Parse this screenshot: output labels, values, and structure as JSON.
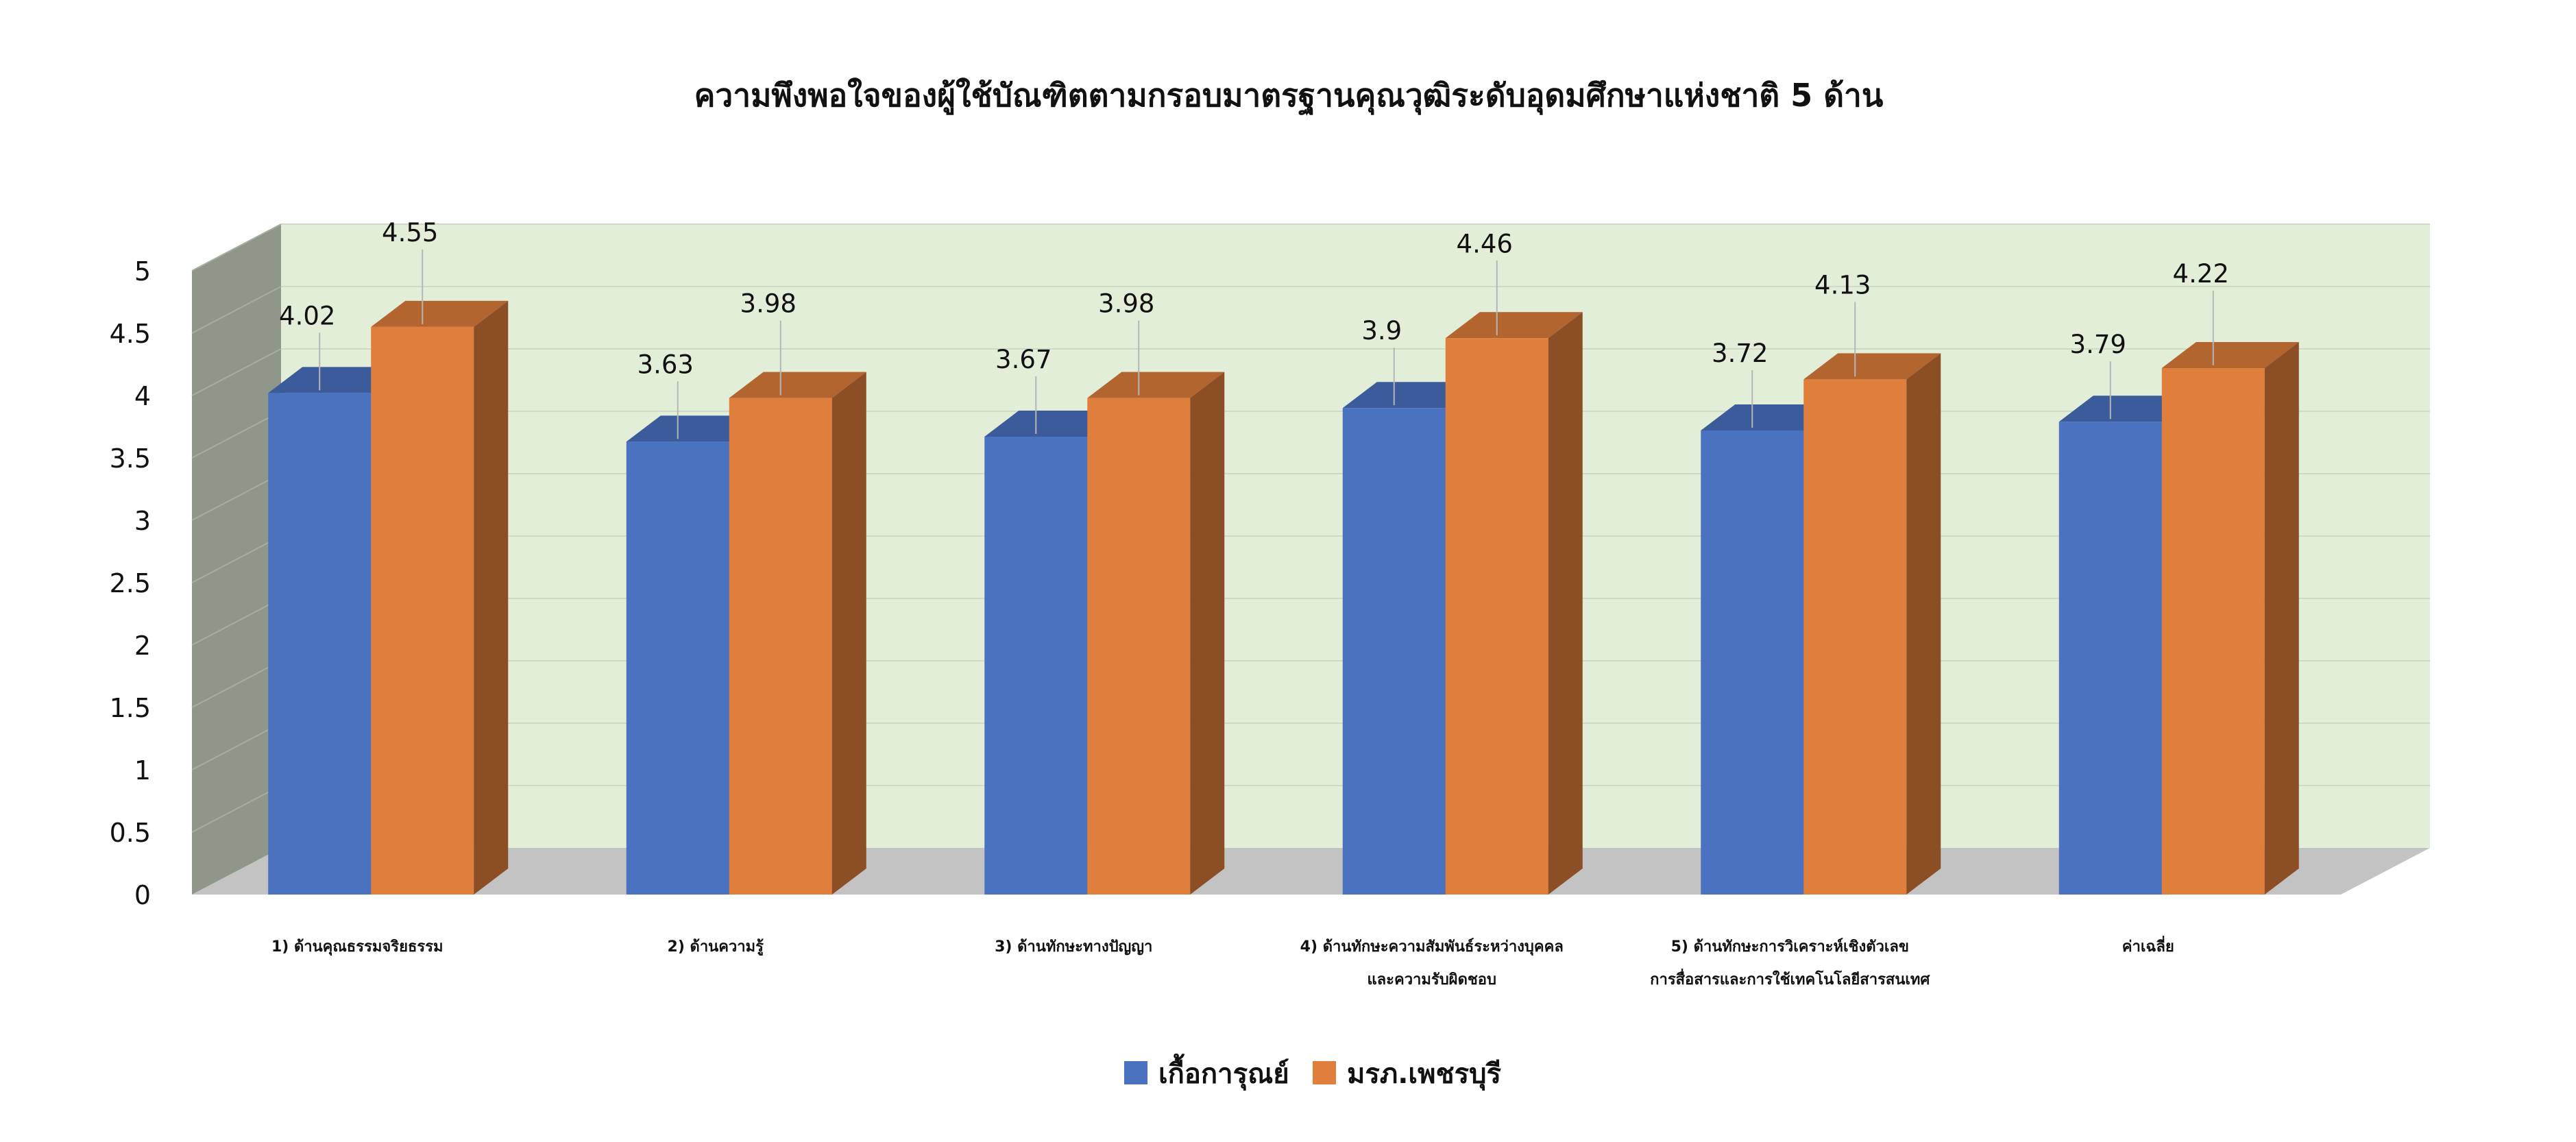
{
  "chart_data": {
    "type": "bar",
    "title": "ความพึงพอใจของผู้ใช้บัณฑิตตามกรอบมาตรฐานคุณวุฒิระดับอุดมศึกษาแห่งชาติ 5 ด้าน",
    "categories": [
      [
        "1) ด้านคุณธรรมจริยธรรม"
      ],
      [
        "2) ด้านความรู้"
      ],
      [
        "3) ด้านทักษะทางปัญญา"
      ],
      [
        "4) ด้านทักษะความสัมพันธ์ระหว่างบุคคล",
        "และความรับผิดชอบ"
      ],
      [
        "5) ด้านทักษะการวิเคราะห์เชิงตัวเลข",
        "การสื่อสารและการใช้เทคโนโลยีสารสนเทศ"
      ],
      [
        "ค่าเฉลี่ย"
      ]
    ],
    "series": [
      {
        "name": "เกื้อการุณย์",
        "values": [
          4.02,
          3.63,
          3.67,
          3.9,
          3.72,
          3.79
        ],
        "color": "#4a72c0"
      },
      {
        "name": "มรภ.เพชรบุรี",
        "values": [
          4.55,
          3.98,
          3.98,
          4.46,
          4.13,
          4.22
        ],
        "color": "#e07e3c"
      }
    ],
    "yticks": [
      "0",
      "0.5",
      "1",
      "1.5",
      "2",
      "2.5",
      "3",
      "3.5",
      "4",
      "4.5",
      "5"
    ],
    "ylim": [
      0,
      5
    ],
    "grid": true,
    "legend_position": "bottom",
    "style": "3d-clustered-column",
    "colors": {
      "back_wall": "#e3eed9",
      "side_wall": "#8f968a",
      "floor": "#c3c3c3",
      "gridline": "#cfd9c6"
    }
  }
}
